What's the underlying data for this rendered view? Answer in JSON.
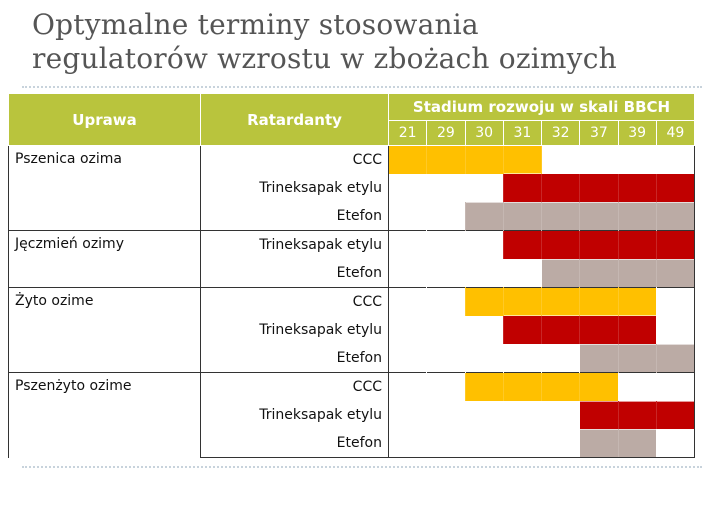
{
  "title": [
    "Optymalne terminy stosowania",
    "regulatorów wzrostu w zbożach ozimych"
  ],
  "headers": {
    "crop": "Uprawa",
    "retardant": "Ratardanty",
    "stage": "Stadium rozwoju w skali BBCH"
  },
  "stages": [
    "21",
    "29",
    "30",
    "31",
    "32",
    "37",
    "39",
    "49"
  ],
  "colors": {
    "header": "#b9c43d",
    "CCC": "#ffc000",
    "Trineksapak etylu": "#c00000",
    "Etefon": "#bbaba5"
  },
  "groups": [
    {
      "crop": "Pszenica ozima",
      "rows": [
        {
          "retardant": "CCC",
          "from": "21",
          "to": "31"
        },
        {
          "retardant": "Trineksapak etylu",
          "from": "31",
          "to": "49"
        },
        {
          "retardant": "Etefon",
          "from": "30",
          "to": "49"
        }
      ]
    },
    {
      "crop": "Jęczmień ozimy",
      "rows": [
        {
          "retardant": "Trineksapak etylu",
          "from": "31",
          "to": "49"
        },
        {
          "retardant": "Etefon",
          "from": "32",
          "to": "49"
        }
      ]
    },
    {
      "crop": "Żyto ozime",
      "rows": [
        {
          "retardant": "CCC",
          "from": "30",
          "to": "39"
        },
        {
          "retardant": "Trineksapak etylu",
          "from": "31",
          "to": "39"
        },
        {
          "retardant": "Etefon",
          "from": "37",
          "to": "49"
        }
      ]
    },
    {
      "crop": "Pszenżyto ozime",
      "rows": [
        {
          "retardant": "CCC",
          "from": "30",
          "to": "37"
        },
        {
          "retardant": "Trineksapak etylu",
          "from": "37",
          "to": "49"
        },
        {
          "retardant": "Etefon",
          "from": "37",
          "to": "39"
        }
      ]
    }
  ]
}
